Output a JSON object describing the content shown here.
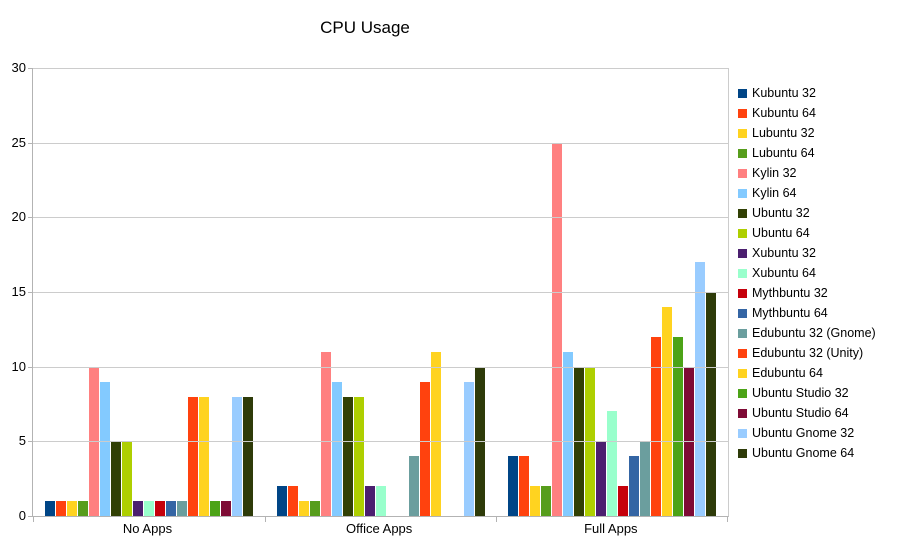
{
  "chart_data": {
    "type": "bar",
    "title": "CPU Usage",
    "xlabel": "",
    "ylabel": "",
    "categories": [
      "No Apps",
      "Office Apps",
      "Full Apps"
    ],
    "series": [
      {
        "name": "Kubuntu 32",
        "color": "#004586",
        "values": [
          1,
          2,
          4
        ]
      },
      {
        "name": "Kubuntu 64",
        "color": "#FF420E",
        "values": [
          1,
          2,
          4
        ]
      },
      {
        "name": "Lubuntu 32",
        "color": "#FFD320",
        "values": [
          1,
          1,
          2
        ]
      },
      {
        "name": "Lubuntu 64",
        "color": "#579D1C",
        "values": [
          1,
          1,
          2
        ]
      },
      {
        "name": "Kylin 32",
        "color": "#FF8080",
        "values": [
          10,
          11,
          25
        ]
      },
      {
        "name": "Kylin 64",
        "color": "#83CAFF",
        "values": [
          9,
          9,
          11
        ]
      },
      {
        "name": "Ubuntu 32",
        "color": "#314004",
        "values": [
          5,
          8,
          10
        ]
      },
      {
        "name": "Ubuntu 64",
        "color": "#AECF00",
        "values": [
          5,
          8,
          10
        ]
      },
      {
        "name": "Xubuntu 32",
        "color": "#4B1F6F",
        "values": [
          1,
          2,
          5
        ]
      },
      {
        "name": "Xubuntu 64",
        "color": "#99FFCC",
        "values": [
          1,
          2,
          7
        ]
      },
      {
        "name": "Mythbuntu 32",
        "color": "#C5000B",
        "values": [
          1,
          0,
          2
        ]
      },
      {
        "name": "Mythbuntu 64",
        "color": "#3465A4",
        "values": [
          1,
          0,
          4
        ]
      },
      {
        "name": "Edubuntu 32 (Gnome)",
        "color": "#6B9E9E",
        "values": [
          1,
          4,
          5
        ]
      },
      {
        "name": "Edubuntu 32 (Unity)",
        "color": "#FF420E",
        "values": [
          8,
          9,
          12
        ]
      },
      {
        "name": "Edubuntu 64",
        "color": "#FFD320",
        "values": [
          8,
          11,
          14
        ]
      },
      {
        "name": "Ubuntu Studio 32",
        "color": "#4CA317",
        "values": [
          1,
          0,
          12
        ]
      },
      {
        "name": "Ubuntu Studio 64",
        "color": "#7E0B35",
        "values": [
          1,
          0,
          10
        ]
      },
      {
        "name": "Ubuntu Gnome 32",
        "color": "#99CCFF",
        "values": [
          8,
          9,
          17
        ]
      },
      {
        "name": "Ubuntu Gnome 64",
        "color": "#2E3B09",
        "values": [
          8,
          10,
          15
        ]
      }
    ],
    "ylim": [
      0,
      30
    ],
    "yticks": [
      0,
      5,
      10,
      15,
      20,
      25,
      30
    ],
    "grid": true,
    "legend_position": "right",
    "colors": {
      "gridline": "#cccccc",
      "axis": "#b3b3b3",
      "text": "#000000",
      "background": "#ffffff"
    }
  }
}
